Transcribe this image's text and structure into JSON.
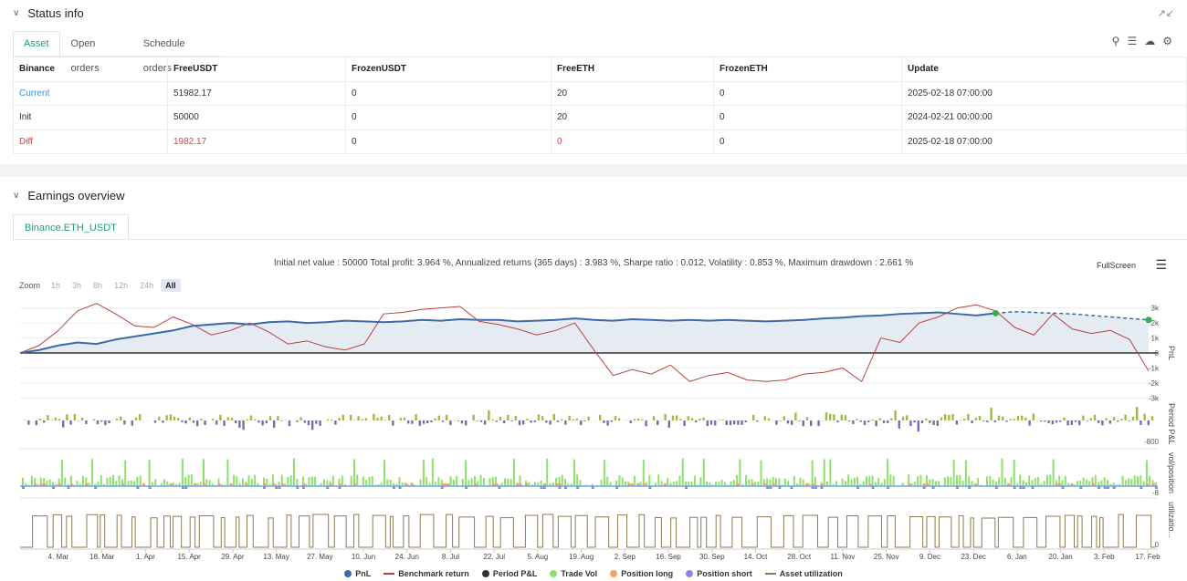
{
  "status": {
    "title": "Status info",
    "tabs": [
      "Asset",
      "Open orders",
      "Schedule orders"
    ],
    "table": {
      "headers": [
        "Binance",
        "FreeUSDT",
        "FrozenUSDT",
        "FreeETH",
        "FrozenETH",
        "Update"
      ],
      "rows": [
        [
          "Current",
          "51982.17",
          "0",
          "20",
          "0",
          "2025-02-18 07:00:00"
        ],
        [
          "Init",
          "50000",
          "0",
          "20",
          "0",
          "2024-02-21 00:00:00"
        ],
        [
          "Diff",
          "1982.17",
          "0",
          "0",
          "0",
          "2025-02-18 07:00:00"
        ]
      ]
    }
  },
  "earnings": {
    "title": "Earnings overview",
    "tab": "Binance.ETH_USDT",
    "summary": "Initial net value : 50000 Total profit: 3.964 %, Annualized returns (365 days) : 3.983 %, Sharpe ratio : 0.012, Volatility : 0.853 %, Maximum drawdown : 2.661 %",
    "fullscreen": "FullScreen",
    "zoom_label": "Zoom",
    "zoom_options": [
      "1h",
      "3h",
      "8h",
      "12h",
      "24h",
      "All"
    ],
    "legend": [
      "PnL",
      "Benchmark return",
      "Period P&L",
      "Trade Vol",
      "Position long",
      "Position short",
      "Asset utilization"
    ]
  },
  "colors": {
    "pnl": "#3d6aa6",
    "benchmark": "#b5433f",
    "period": "#333333",
    "trade_vol": "#8fe06b",
    "pos_long": "#f4a15a",
    "pos_short": "#8d86e0",
    "utilization": "#8c7a52",
    "accent": "#1f9f6e"
  },
  "chart_data": {
    "type": "line",
    "x_ticks": [
      "4. Mar",
      "18. Mar",
      "1. Apr",
      "15. Apr",
      "29. Apr",
      "13. May",
      "27. May",
      "10. Jun",
      "24. Jun",
      "8. Jul",
      "22. Jul",
      "5. Aug",
      "19. Aug",
      "2. Sep",
      "16. Sep",
      "30. Sep",
      "14. Oct",
      "28. Oct",
      "11. Nov",
      "25. Nov",
      "9. Dec",
      "23. Dec",
      "6. Jan",
      "20. Jan",
      "3. Feb",
      "17. Feb"
    ],
    "pnl_axis": [
      "3k",
      "2k",
      "1k",
      "0",
      "-1k",
      "-2k",
      "-3k"
    ],
    "pnl_label": "PnL",
    "period_axis": "-800",
    "period_label": "Period P&L",
    "vol_axis": "-8",
    "vol_label": "vol/position",
    "util_axis": "0",
    "util_label": "utilizatio...",
    "ylim": [
      -3000,
      3000
    ],
    "pnl": [
      0,
      200,
      500,
      700,
      600,
      900,
      1100,
      1300,
      1500,
      1800,
      1900,
      2000,
      1900,
      2050,
      2100,
      2000,
      2050,
      2150,
      2100,
      2050,
      2100,
      2200,
      2150,
      2250,
      2200,
      2200,
      2100,
      2150,
      2200,
      2300,
      2200,
      2150,
      2250,
      2200,
      2150,
      2200,
      2150,
      2200,
      2150,
      2100,
      2150,
      2200,
      2300,
      2350,
      2450,
      2500,
      2600,
      2650,
      2700,
      2600,
      2500,
      2650,
      2750,
      2700,
      2650,
      2600,
      2500,
      2400,
      2300,
      2200
    ],
    "benchmark": [
      0,
      500,
      1500,
      2800,
      3300,
      2600,
      1800,
      1700,
      2400,
      1900,
      1200,
      1500,
      2000,
      1400,
      600,
      800,
      400,
      200,
      600,
      2600,
      2700,
      2900,
      3000,
      3100,
      2100,
      1900,
      1600,
      1200,
      1500,
      2000,
      200,
      -1500,
      -1100,
      -1400,
      -800,
      -1900,
      -1500,
      -1300,
      -1800,
      -1900,
      -1800,
      -1400,
      -1300,
      -1000,
      -1900,
      1000,
      700,
      2000,
      2400,
      3000,
      3200,
      2800,
      1700,
      1200,
      2600,
      1600,
      1300,
      1500,
      900,
      -1200
    ]
  }
}
